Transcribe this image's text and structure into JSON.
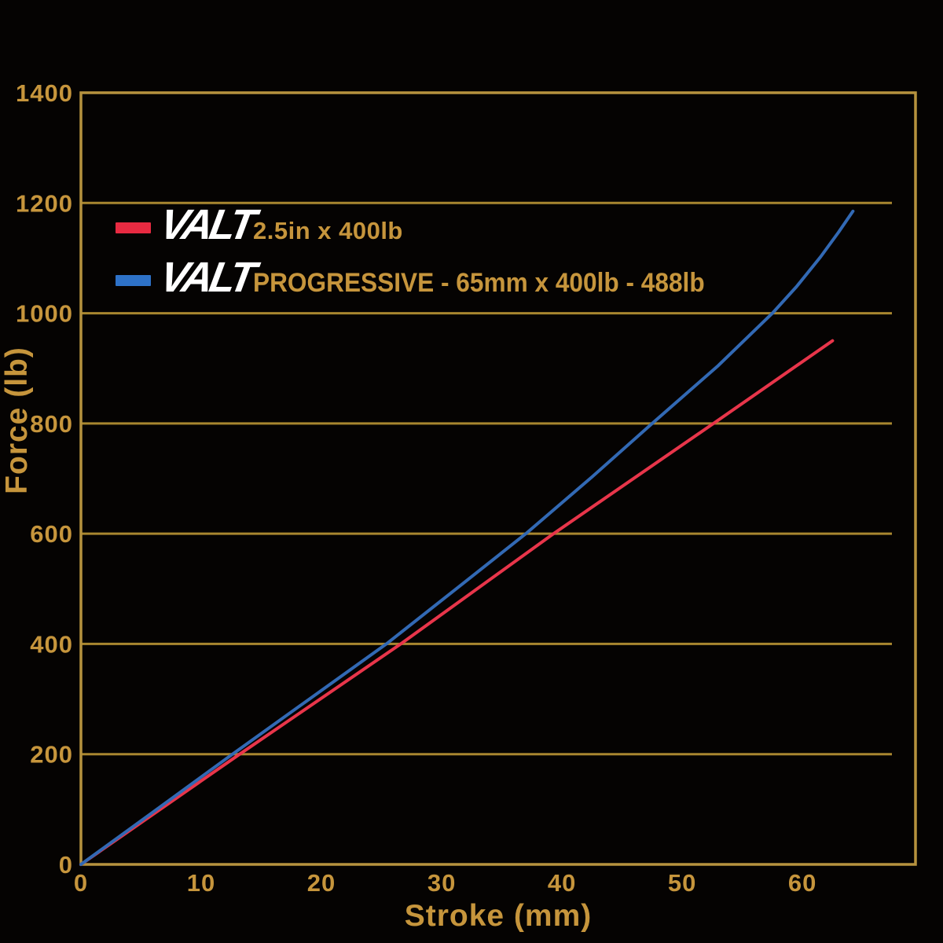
{
  "colors": {
    "background": "#050302",
    "gold_text": "#c6953c",
    "grid": "#a8862f",
    "frame": "#b6923e",
    "red": "#e8354a",
    "blue": "#3269b4",
    "logo_white": "#ffffff"
  },
  "legend": {
    "items": [
      {
        "brand": "VALT",
        "label": "2.5in x 400lb",
        "swatch_color": "#e82a41"
      },
      {
        "brand": "VALT",
        "label": "PROGRESSIVE - 65mm x 400lb - 488lb",
        "swatch_color": "#2e72c8"
      }
    ]
  },
  "chart_data": {
    "type": "line",
    "title": "",
    "xlabel": "Stroke (mm)",
    "ylabel": "Force (lb)",
    "xlim": [
      0,
      69.4
    ],
    "ylim": [
      0,
      1400
    ],
    "xticks": [
      0,
      10,
      20,
      30,
      40,
      50,
      60
    ],
    "yticks": [
      0,
      200,
      400,
      600,
      800,
      1000,
      1200,
      1400
    ],
    "grid": "horizontal-only",
    "legend_position": "top-left-inside",
    "series": [
      {
        "name": "VALT 2.5in x 400lb",
        "color": "#e8354a",
        "x": [
          0,
          13.2,
          26.6,
          39.3,
          52.6,
          62.5
        ],
        "y": [
          0,
          200,
          400,
          600,
          800,
          950
        ]
      },
      {
        "name": "VALT PROGRESSIVE - 65mm x 400lb - 488lb",
        "color": "#3269b4",
        "x": [
          0,
          6,
          12.6,
          19,
          25.4,
          31.5,
          37,
          42.5,
          47.5,
          53,
          57.5,
          59.5,
          61.5,
          63,
          64.2
        ],
        "y": [
          0,
          95,
          200,
          300,
          400,
          505,
          600,
          703,
          800,
          905,
          1000,
          1048,
          1102,
          1147,
          1185
        ]
      }
    ]
  }
}
